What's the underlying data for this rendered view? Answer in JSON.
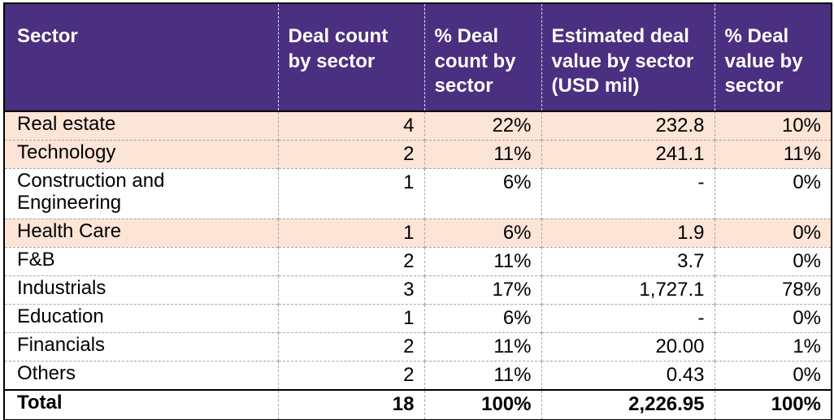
{
  "table": {
    "columns": [
      "Sector",
      "Deal count by sector",
      "% Deal count by sector",
      "Estimated deal value by sector (USD mil)",
      "% Deal value by sector"
    ],
    "rows": [
      {
        "sector": "Real estate",
        "deal_count": "4",
        "pct_deal_count": "22%",
        "est_value": "232.8",
        "pct_deal_value": "10%"
      },
      {
        "sector": "Technology",
        "deal_count": "2",
        "pct_deal_count": "11%",
        "est_value": "241.1",
        "pct_deal_value": "11%"
      },
      {
        "sector": "Construction and Engineering",
        "deal_count": "1",
        "pct_deal_count": "6%",
        "est_value": "-",
        "pct_deal_value": "0%"
      },
      {
        "sector": "Health Care",
        "deal_count": "1",
        "pct_deal_count": "6%",
        "est_value": "1.9",
        "pct_deal_value": "0%"
      },
      {
        "sector": "F&B",
        "deal_count": "2",
        "pct_deal_count": "11%",
        "est_value": "3.7",
        "pct_deal_value": "0%"
      },
      {
        "sector": "Industrials",
        "deal_count": "3",
        "pct_deal_count": "17%",
        "est_value": "1,727.1",
        "pct_deal_value": "78%"
      },
      {
        "sector": "Education",
        "deal_count": "1",
        "pct_deal_count": "6%",
        "est_value": "-",
        "pct_deal_value": "0%"
      },
      {
        "sector": "Financials",
        "deal_count": "2",
        "pct_deal_count": "11%",
        "est_value": "20.00",
        "pct_deal_value": "1%"
      },
      {
        "sector": "Others",
        "deal_count": "2",
        "pct_deal_count": "11%",
        "est_value": "0.43",
        "pct_deal_value": "0%"
      }
    ],
    "total": {
      "sector": "Total",
      "deal_count": "18",
      "pct_deal_count": "100%",
      "est_value": "2,226.95",
      "pct_deal_value": "100%"
    }
  },
  "colors": {
    "header_bg": "#4B2F80",
    "header_text": "#FFFFFF",
    "shaded_row_bg": "#FCE4D6",
    "grid_dash": "#A6A6A6",
    "border": "#000000",
    "body_text": "#000000"
  },
  "chart_data": {
    "type": "table",
    "columns": [
      "Sector",
      "Deal count by sector",
      "% Deal count by sector",
      "Estimated deal value by sector (USD mil)",
      "% Deal value by sector"
    ],
    "rows": [
      [
        "Real estate",
        4,
        "22%",
        232.8,
        "10%"
      ],
      [
        "Technology",
        2,
        "11%",
        241.1,
        "11%"
      ],
      [
        "Construction and Engineering",
        1,
        "6%",
        "-",
        "0%"
      ],
      [
        "Health Care",
        1,
        "6%",
        1.9,
        "0%"
      ],
      [
        "F&B",
        2,
        "11%",
        3.7,
        "0%"
      ],
      [
        "Industrials",
        3,
        "17%",
        1727.1,
        "78%"
      ],
      [
        "Education",
        1,
        "6%",
        "-",
        "0%"
      ],
      [
        "Financials",
        2,
        "11%",
        20.0,
        "1%"
      ],
      [
        "Others",
        2,
        "11%",
        0.43,
        "0%"
      ],
      [
        "Total",
        18,
        "100%",
        2226.95,
        "100%"
      ]
    ],
    "shaded_rows": [
      "Real estate",
      "Technology",
      "Health Care"
    ],
    "layout": {
      "header_align": "left",
      "number_align": "right",
      "grid": "dashed",
      "total_row_bold": true
    }
  }
}
